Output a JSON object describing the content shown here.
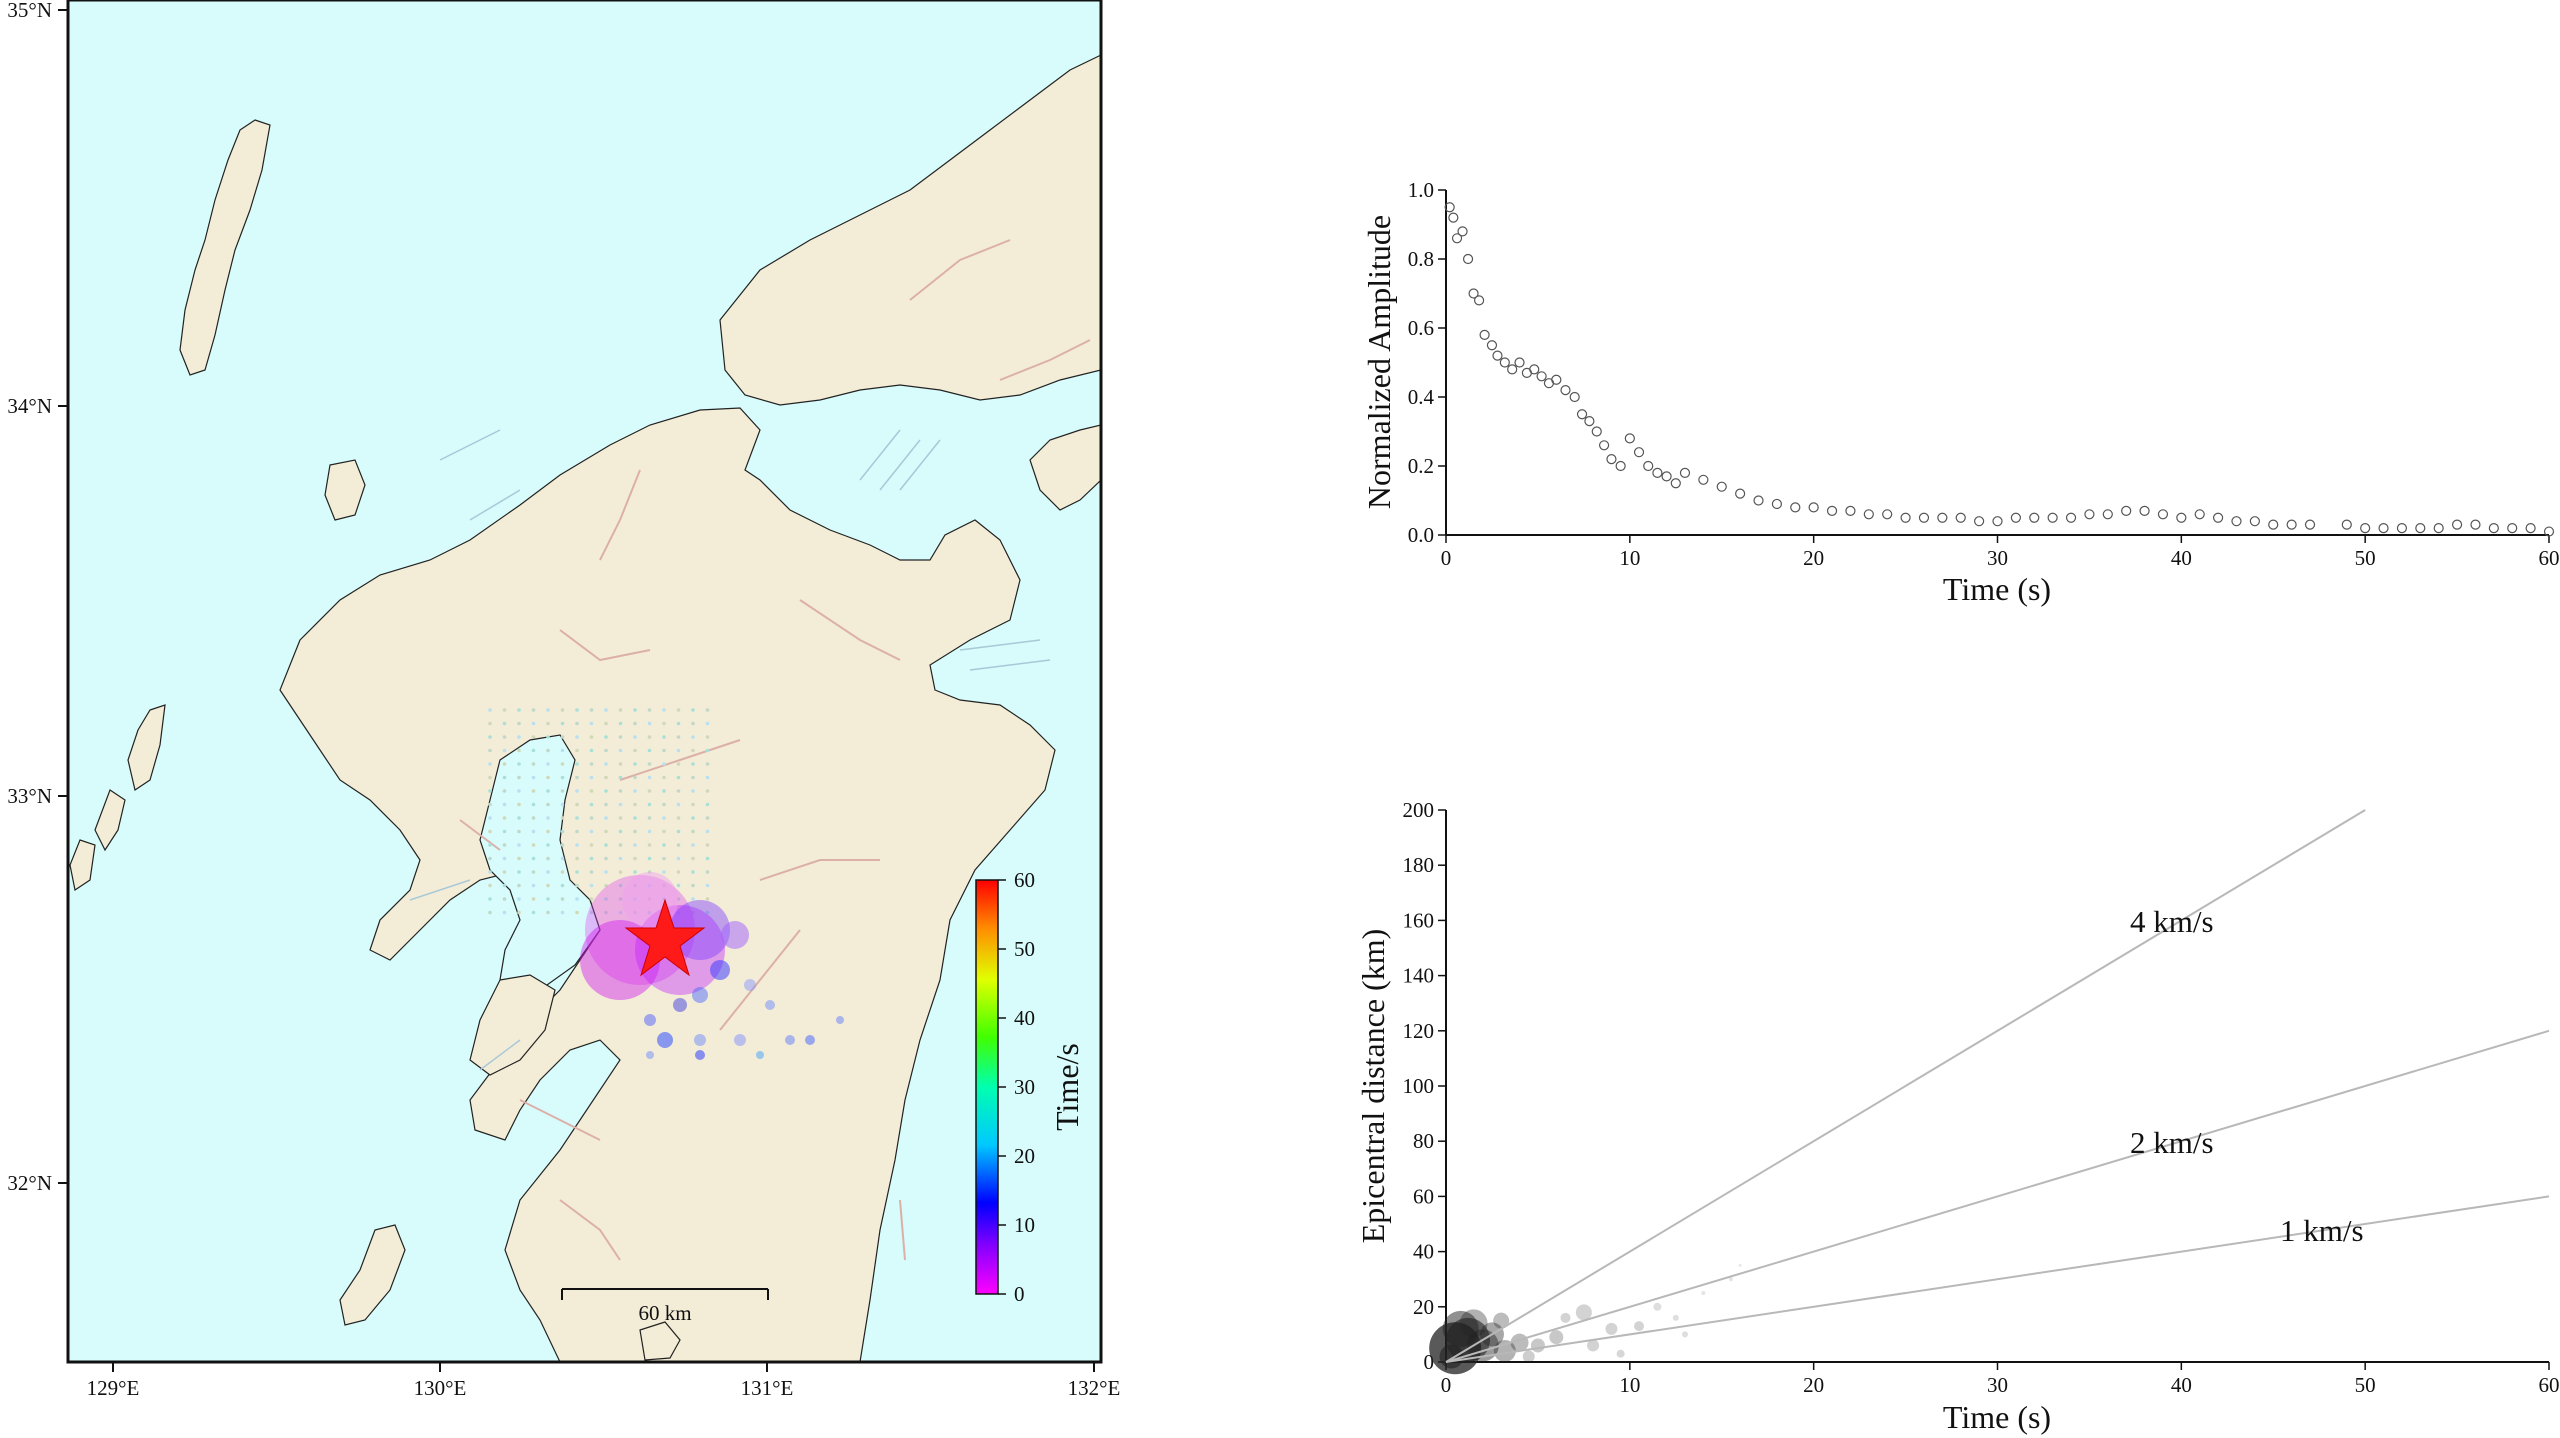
{
  "colors": {
    "sea": "#d8fcfc",
    "land": "#f3edd7",
    "fault": "#dcb0a8",
    "epicenter": "#ff1a1a"
  },
  "chart_data": [
    {
      "type": "scatter",
      "subtype": "map",
      "xlabel": "",
      "ylabel": "",
      "xlim": [
        128.9,
        132.0
      ],
      "ylim": [
        31.5,
        35.0
      ],
      "x_ticks": [
        "129°E",
        "130°E",
        "131°E",
        "132°E"
      ],
      "y_ticks": [
        "32°N",
        "33°N",
        "34°N",
        "35°N"
      ],
      "scale_bar_label": "60 km",
      "colorbar": {
        "title": "Time/s",
        "range": [
          0,
          60
        ],
        "ticks": [
          "0",
          "10",
          "20",
          "30",
          "40",
          "50",
          "60"
        ]
      },
      "epicenter": {
        "lon": 130.7,
        "lat": 32.6,
        "symbol": "star"
      }
    },
    {
      "type": "scatter",
      "xlabel": "Time (s)",
      "ylabel": "Normalized Amplitude",
      "xlim": [
        0,
        60
      ],
      "ylim": [
        0,
        1.0
      ],
      "x_ticks": [
        "0",
        "10",
        "20",
        "30",
        "40",
        "50",
        "60"
      ],
      "y_ticks": [
        "0.0",
        "0.2",
        "0.4",
        "0.6",
        "0.8",
        "1.0"
      ],
      "x": [
        0.2,
        0.4,
        0.6,
        0.9,
        1.2,
        1.5,
        1.8,
        2.1,
        2.5,
        2.8,
        3.2,
        3.6,
        4.0,
        4.4,
        4.8,
        5.2,
        5.6,
        6.0,
        6.5,
        7.0,
        7.4,
        7.8,
        8.2,
        8.6,
        9.0,
        9.5,
        10.0,
        10.5,
        11.0,
        11.5,
        12.0,
        12.5,
        13.0,
        14.0,
        15.0,
        16.0,
        17.0,
        18.0,
        19.0,
        20.0,
        21.0,
        22.0,
        23.0,
        24.0,
        25.0,
        26.0,
        27.0,
        28.0,
        29.0,
        30.0,
        31.0,
        32.0,
        33.0,
        34.0,
        35.0,
        36.0,
        37.0,
        38.0,
        39.0,
        40.0,
        41.0,
        42.0,
        43.0,
        44.0,
        45.0,
        46.0,
        47.0,
        49.0,
        50.0,
        51.0,
        52.0,
        53.0,
        54.0,
        55.0,
        56.0,
        57.0,
        58.0,
        59.0,
        60.0
      ],
      "y": [
        0.95,
        0.92,
        0.86,
        0.88,
        0.8,
        0.7,
        0.68,
        0.58,
        0.55,
        0.52,
        0.5,
        0.48,
        0.5,
        0.47,
        0.48,
        0.46,
        0.44,
        0.45,
        0.42,
        0.4,
        0.35,
        0.33,
        0.3,
        0.26,
        0.22,
        0.2,
        0.28,
        0.24,
        0.2,
        0.18,
        0.17,
        0.15,
        0.18,
        0.16,
        0.14,
        0.12,
        0.1,
        0.09,
        0.08,
        0.08,
        0.07,
        0.07,
        0.06,
        0.06,
        0.05,
        0.05,
        0.05,
        0.05,
        0.04,
        0.04,
        0.05,
        0.05,
        0.05,
        0.05,
        0.06,
        0.06,
        0.07,
        0.07,
        0.06,
        0.05,
        0.06,
        0.05,
        0.04,
        0.04,
        0.03,
        0.03,
        0.03,
        0.03,
        0.02,
        0.02,
        0.02,
        0.02,
        0.02,
        0.03,
        0.03,
        0.02,
        0.02,
        0.02,
        0.01
      ]
    },
    {
      "type": "scatter",
      "xlabel": "Time (s)",
      "ylabel": "Epicentral distance (km)",
      "xlim": [
        0,
        60
      ],
      "ylim": [
        0,
        200
      ],
      "x_ticks": [
        "0",
        "10",
        "20",
        "30",
        "40",
        "50",
        "60"
      ],
      "y_ticks": [
        "0",
        "20",
        "40",
        "60",
        "80",
        "100",
        "120",
        "140",
        "160",
        "180",
        "200"
      ],
      "lines": [
        {
          "label": "4 km/s",
          "speed": 4
        },
        {
          "label": "2 km/s",
          "speed": 2
        },
        {
          "label": "1 km/s",
          "speed": 1
        }
      ]
    }
  ]
}
